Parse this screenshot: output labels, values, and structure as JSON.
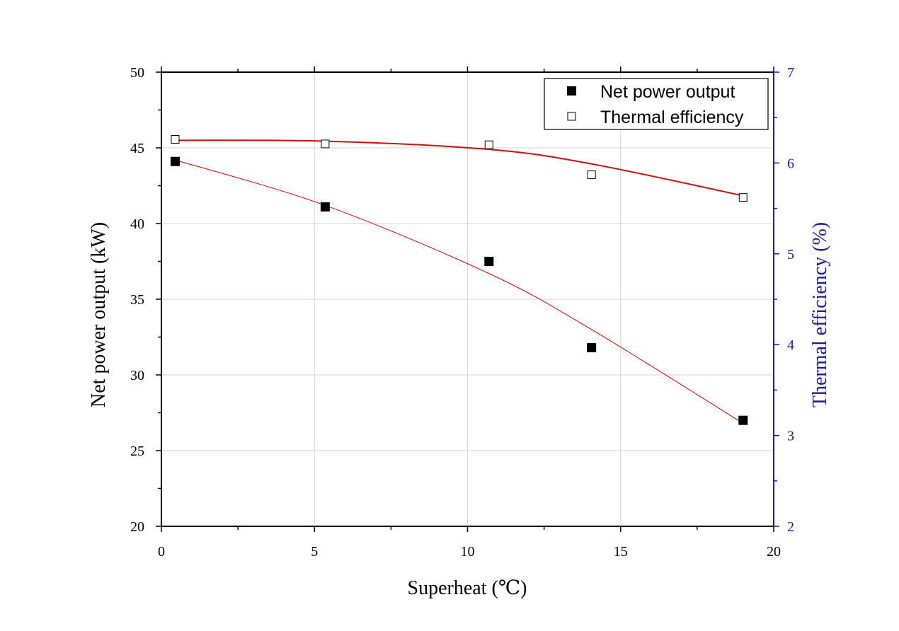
{
  "chart_data": {
    "type": "scatter",
    "title": "",
    "xlabel": "Superheat (℃)",
    "ylabel_left": "Net power output (kW)",
    "ylabel_right": "Thermal efficiency (%)",
    "xlim": [
      0,
      20
    ],
    "ylim_left": [
      20,
      50
    ],
    "ylim_right": [
      2,
      7
    ],
    "x_ticks": [
      "0",
      "5",
      "10",
      "15",
      "20"
    ],
    "y_left_ticks": [
      "20",
      "25",
      "30",
      "35",
      "40",
      "45",
      "50"
    ],
    "y_right_ticks": [
      "2",
      "3",
      "4",
      "5",
      "6",
      "7"
    ],
    "grid": true,
    "legend_position": "top-right",
    "series": [
      {
        "name": "Net power output",
        "axis": "left",
        "marker": "filled-square",
        "color": "#000000",
        "x": [
          0.45,
          5.35,
          10.7,
          14.05,
          19.0
        ],
        "y": [
          44.1,
          41.1,
          37.5,
          31.8,
          27.0
        ],
        "fit_color": "#e00000",
        "fit": [
          44.2,
          41.2,
          36.7,
          33.0,
          26.8
        ]
      },
      {
        "name": "Thermal efficiency",
        "axis": "right",
        "marker": "open-square",
        "color": "#000000",
        "x": [
          0.45,
          5.35,
          10.7,
          14.05,
          19.0
        ],
        "y": [
          6.26,
          6.21,
          6.2,
          5.87,
          5.62
        ],
        "fit_color": "#cc1010",
        "fit": [
          6.25,
          6.24,
          6.15,
          5.99,
          5.64
        ]
      }
    ],
    "colors": {
      "left_axis": "#000000",
      "right_axis": "#1a1aa6",
      "grid": "#d6d6d6"
    }
  }
}
